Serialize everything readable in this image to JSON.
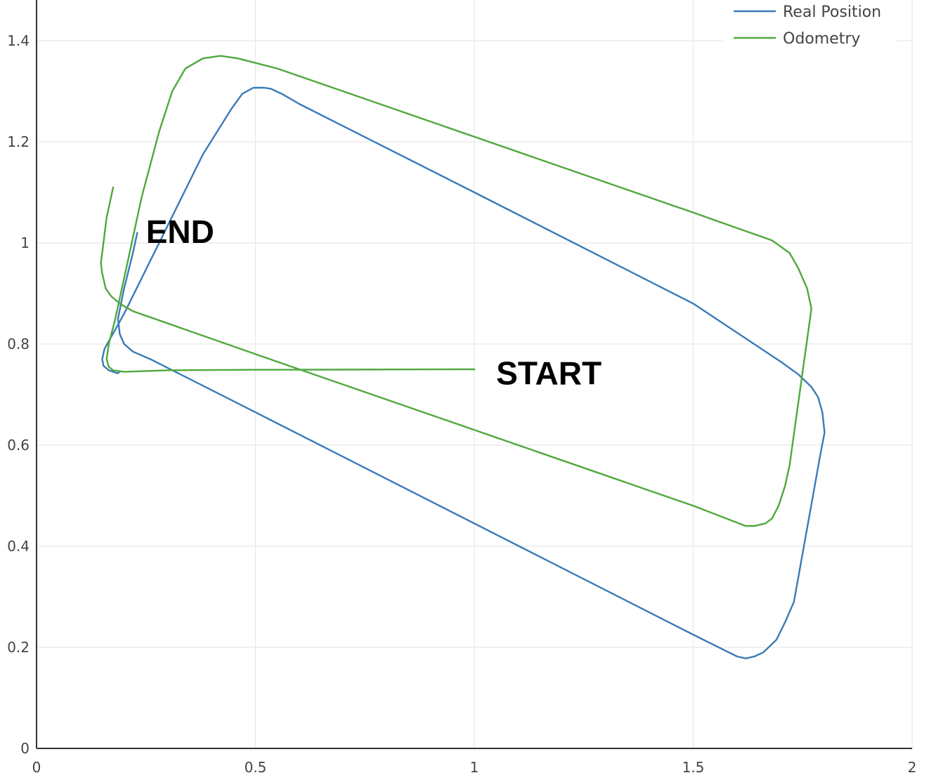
{
  "chart_data": {
    "type": "line",
    "title": "",
    "xlabel": "",
    "ylabel": "",
    "xlim": [
      0,
      2
    ],
    "ylim": [
      0,
      1.4
    ],
    "x_ticks": [
      0,
      0.5,
      1,
      1.5,
      2
    ],
    "x_tick_labels": [
      "0",
      "0.5",
      "1",
      "1.5",
      "2"
    ],
    "y_ticks": [
      0,
      0.2,
      0.4,
      0.6,
      0.8,
      1,
      1.2,
      1.4
    ],
    "y_tick_labels": [
      "0",
      "0.2",
      "0.4",
      "0.6",
      "0.8",
      "1",
      "1.2",
      "1.4"
    ],
    "grid": true,
    "legend_position": "top-right",
    "series": [
      {
        "name": "Real Position",
        "color": "#3a7ab8",
        "points": [
          [
            0.23,
            1.02
          ],
          [
            0.22,
            0.98
          ],
          [
            0.2,
            0.91
          ],
          [
            0.186,
            0.85
          ],
          [
            0.19,
            0.82
          ],
          [
            0.2,
            0.8
          ],
          [
            0.22,
            0.785
          ],
          [
            0.26,
            0.77
          ],
          [
            0.5,
            0.665
          ],
          [
            1.0,
            0.445
          ],
          [
            1.5,
            0.225
          ],
          [
            1.6,
            0.182
          ],
          [
            1.62,
            0.178
          ],
          [
            1.64,
            0.182
          ],
          [
            1.66,
            0.19
          ],
          [
            1.69,
            0.215
          ],
          [
            1.71,
            0.25
          ],
          [
            1.73,
            0.29
          ],
          [
            1.79,
            0.58
          ],
          [
            1.8,
            0.625
          ],
          [
            1.795,
            0.665
          ],
          [
            1.785,
            0.695
          ],
          [
            1.77,
            0.715
          ],
          [
            1.74,
            0.74
          ],
          [
            1.7,
            0.765
          ],
          [
            1.5,
            0.88
          ],
          [
            1.0,
            1.1
          ],
          [
            0.6,
            1.275
          ],
          [
            0.56,
            1.295
          ],
          [
            0.535,
            1.305
          ],
          [
            0.52,
            1.307
          ],
          [
            0.495,
            1.307
          ],
          [
            0.47,
            1.295
          ],
          [
            0.445,
            1.265
          ],
          [
            0.38,
            1.175
          ],
          [
            0.3,
            1.035
          ],
          [
            0.2,
            0.86
          ],
          [
            0.155,
            0.79
          ],
          [
            0.15,
            0.77
          ],
          [
            0.153,
            0.757
          ],
          [
            0.165,
            0.748
          ],
          [
            0.185,
            0.742
          ],
          [
            0.19,
            0.745
          ]
        ]
      },
      {
        "name": "Odometry",
        "color": "#4fa83d",
        "points": [
          [
            1.0,
            0.75
          ],
          [
            0.5,
            0.749
          ],
          [
            0.3,
            0.748
          ],
          [
            0.2,
            0.745
          ],
          [
            0.175,
            0.748
          ],
          [
            0.165,
            0.755
          ],
          [
            0.16,
            0.77
          ],
          [
            0.165,
            0.8
          ],
          [
            0.18,
            0.85
          ],
          [
            0.2,
            0.93
          ],
          [
            0.24,
            1.09
          ],
          [
            0.28,
            1.22
          ],
          [
            0.31,
            1.3
          ],
          [
            0.34,
            1.345
          ],
          [
            0.38,
            1.365
          ],
          [
            0.42,
            1.37
          ],
          [
            0.46,
            1.365
          ],
          [
            0.55,
            1.345
          ],
          [
            1.0,
            1.21
          ],
          [
            1.5,
            1.06
          ],
          [
            1.68,
            1.005
          ],
          [
            1.72,
            0.98
          ],
          [
            1.74,
            0.95
          ],
          [
            1.76,
            0.91
          ],
          [
            1.77,
            0.87
          ],
          [
            1.72,
            0.56
          ],
          [
            1.71,
            0.52
          ],
          [
            1.695,
            0.48
          ],
          [
            1.68,
            0.455
          ],
          [
            1.665,
            0.445
          ],
          [
            1.64,
            0.44
          ],
          [
            1.62,
            0.44
          ],
          [
            1.5,
            0.48
          ],
          [
            1.0,
            0.63
          ],
          [
            0.5,
            0.78
          ],
          [
            0.22,
            0.865
          ],
          [
            0.19,
            0.88
          ],
          [
            0.17,
            0.895
          ],
          [
            0.158,
            0.91
          ],
          [
            0.15,
            0.94
          ],
          [
            0.147,
            0.96
          ],
          [
            0.16,
            1.05
          ],
          [
            0.175,
            1.11
          ]
        ]
      }
    ],
    "annotations": [
      {
        "text": "END",
        "x": 0.25,
        "y": 1.0
      },
      {
        "text": "START",
        "x": 1.05,
        "y": 0.72
      }
    ]
  }
}
